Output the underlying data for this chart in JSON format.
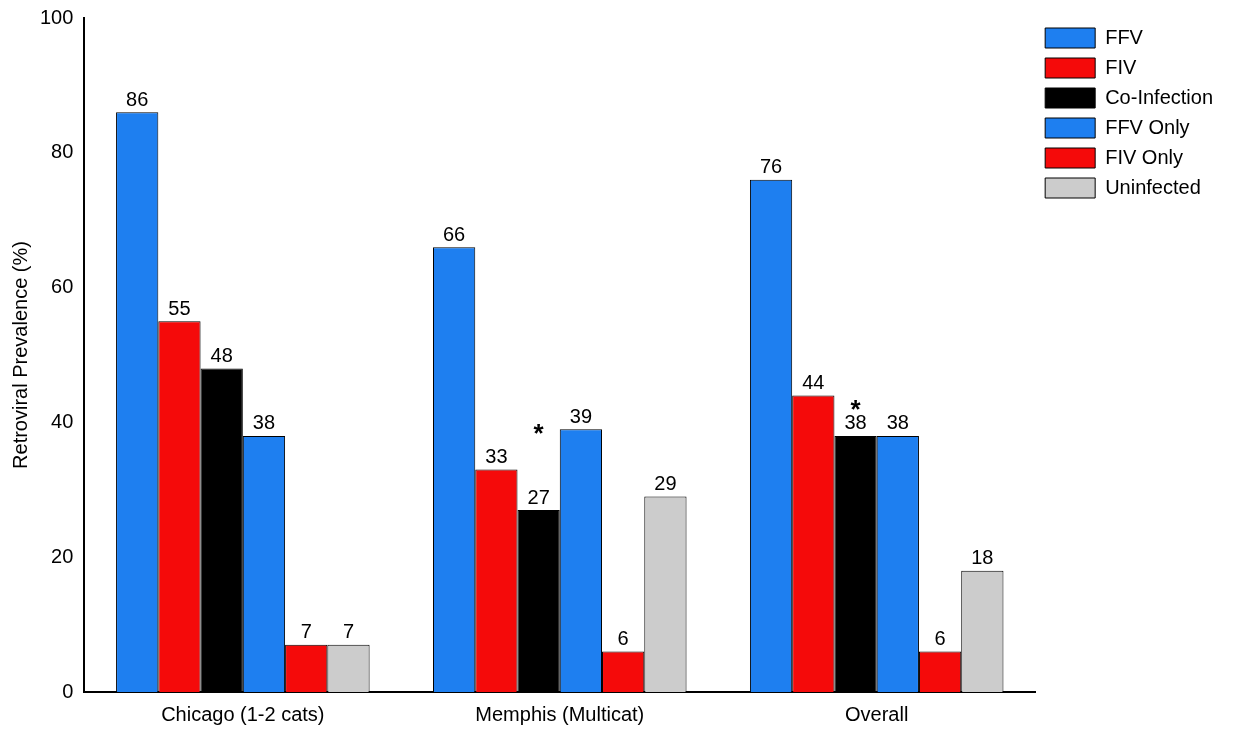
{
  "chart_data": {
    "type": "bar",
    "ylabel": "Retroviral Prevalence (%)",
    "categories": [
      "Chicago (1-2 cats)",
      "Memphis (Multicat)",
      "Overall"
    ],
    "series": [
      {
        "name": "FFV",
        "color": "#1e7ff0",
        "values": [
          86,
          66,
          76
        ]
      },
      {
        "name": "FIV",
        "color": "#f50a0a",
        "values": [
          55,
          33,
          44
        ]
      },
      {
        "name": "Co-Infection",
        "color": "#000000",
        "values": [
          48,
          27,
          38
        ]
      },
      {
        "name": "FFV Only",
        "color": "#1e7ff0",
        "values": [
          38,
          39,
          38
        ]
      },
      {
        "name": "FIV Only",
        "color": "#f50a0a",
        "values": [
          7,
          6,
          6
        ]
      },
      {
        "name": "Uninfected",
        "color": "#cccccc",
        "values": [
          7,
          29,
          18
        ]
      }
    ],
    "ylim": [
      0,
      100
    ],
    "yticks": [
      0,
      20,
      40,
      60,
      80,
      100
    ],
    "grid": false,
    "legend": "right",
    "data_labels": true,
    "annotations": [
      "*",
      "*"
    ]
  }
}
